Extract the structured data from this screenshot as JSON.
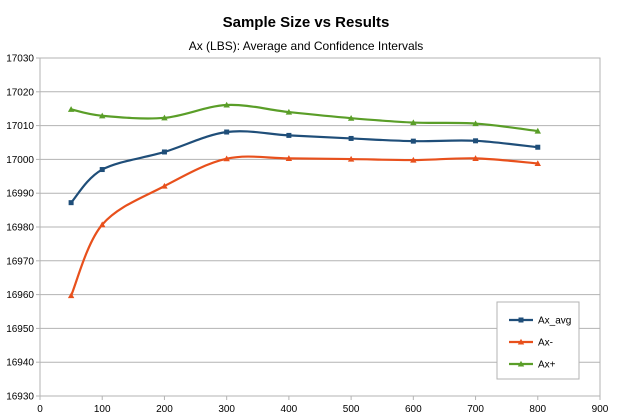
{
  "chart_data": {
    "type": "line",
    "title": "Sample Size vs Results",
    "subtitle": "Ax (LBS): Average and Confidence Intervals",
    "xlabel": "",
    "ylabel": "",
    "xlim": [
      0,
      900
    ],
    "ylim": [
      16930,
      17030
    ],
    "x_ticks": [
      0,
      100,
      200,
      300,
      400,
      500,
      600,
      700,
      800,
      900
    ],
    "y_ticks": [
      16930,
      16940,
      16950,
      16960,
      16970,
      16980,
      16990,
      17000,
      17010,
      17020,
      17030
    ],
    "grid": true,
    "legend_position": "bottom-right",
    "x": [
      50,
      100,
      200,
      300,
      400,
      500,
      600,
      700,
      800
    ],
    "series": [
      {
        "name": "Ax_avg",
        "color": "#1f4e79",
        "marker": "square",
        "values": [
          16987.2,
          16997.0,
          17002.2,
          17008.1,
          17007.1,
          17006.2,
          17005.4,
          17005.5,
          17003.6
        ]
      },
      {
        "name": "Ax-",
        "color": "#e8501c",
        "marker": "triangle",
        "values": [
          16959.7,
          16980.7,
          16992.1,
          17000.2,
          17000.3,
          17000.1,
          16999.8,
          17000.3,
          16998.8
        ]
      },
      {
        "name": "Ax+",
        "color": "#5a9e28",
        "marker": "triangle",
        "values": [
          17014.8,
          17012.9,
          17012.3,
          17016.1,
          17014.0,
          17012.2,
          17010.9,
          17010.6,
          17008.4
        ]
      }
    ]
  }
}
